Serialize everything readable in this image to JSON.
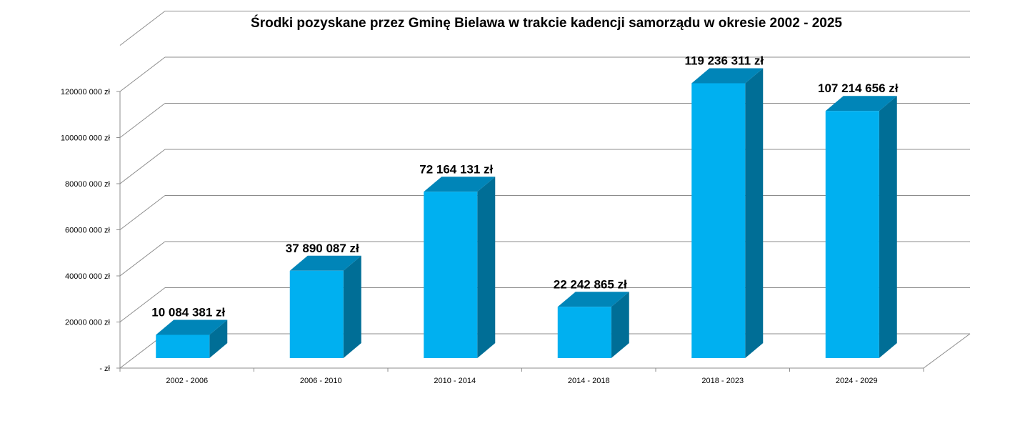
{
  "chart_data": {
    "type": "bar",
    "title": "Środki pozyskane przez Gminę Bielawa w trakcie kadencji samorządu w okresie 2002 - 2025",
    "categories": [
      "2002 - 2006",
      "2006 - 2010",
      "2010 - 2014",
      "2014 - 2018",
      "2018 - 2023",
      "2024 - 2029"
    ],
    "values": [
      10084381,
      37890087,
      72164131,
      22242865,
      119236311,
      107214656
    ],
    "data_labels": [
      "10 084 381 zł",
      "37 890 087 zł",
      "72 164 131 zł",
      "22 242 865 zł",
      "119 236 311 zł",
      "107 214 656 zł"
    ],
    "y_ticks": [
      0,
      20000000,
      40000000,
      60000000,
      80000000,
      100000000,
      120000000
    ],
    "y_tick_labels": [
      "-  zł",
      "20000 000 zł",
      "40000 000 zł",
      "60000 000 zł",
      "80000 000 zł",
      "100000 000 zł",
      "120000 000 zł"
    ],
    "ylim": [
      0,
      120000000
    ],
    "xlabel": "",
    "ylabel": "",
    "grid": true,
    "style": "3d-column",
    "colors": {
      "bar_front": "#00B0F0",
      "bar_top": "#0085B8",
      "bar_side": "#006E96",
      "grid": "#8C8C8C"
    }
  }
}
